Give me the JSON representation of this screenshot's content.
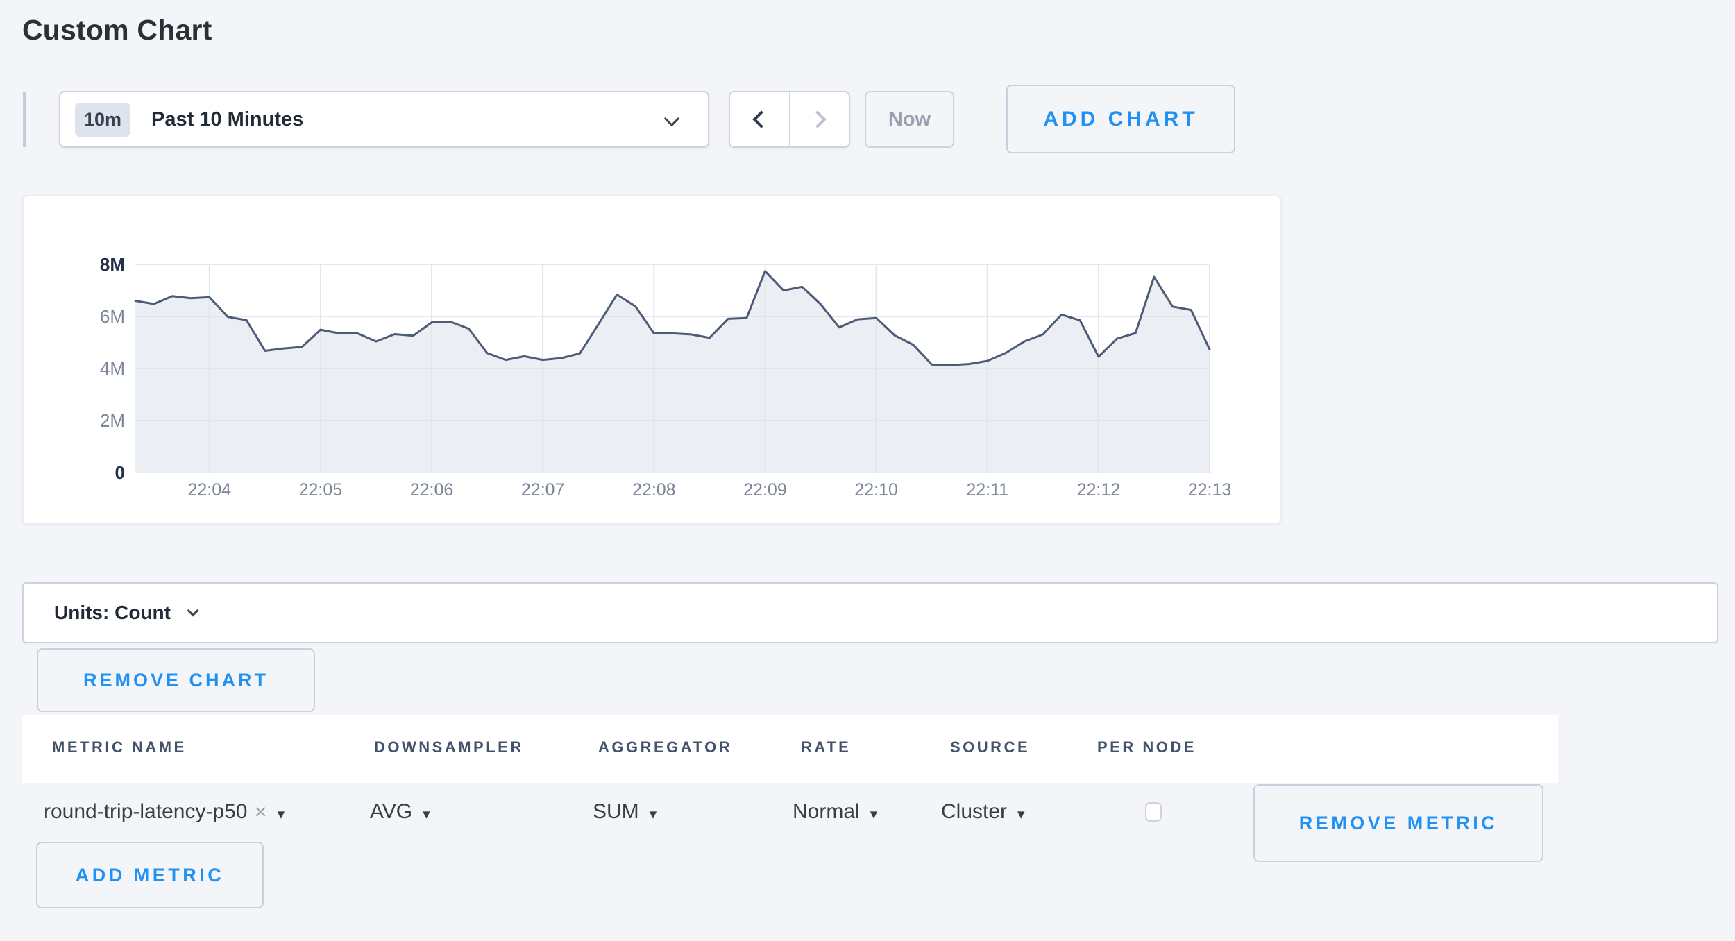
{
  "page": {
    "title": "Custom Chart"
  },
  "toolbar": {
    "time_badge": "10m",
    "time_label": "Past 10 Minutes",
    "now_label": "Now",
    "add_chart_label": "ADD CHART"
  },
  "units_bar": {
    "label": "Units: Count"
  },
  "chart_controls": {
    "remove_chart_label": "REMOVE CHART"
  },
  "metrics_table": {
    "columns": [
      "METRIC NAME",
      "DOWNSAMPLER",
      "AGGREGATOR",
      "RATE",
      "SOURCE",
      "PER NODE"
    ],
    "row": {
      "metric_name": "round-trip-latency-p50",
      "downsampler": "AVG",
      "aggregator": "SUM",
      "rate": "Normal",
      "source": "Cluster",
      "per_node_checked": false,
      "remove_metric_label": "REMOVE METRIC"
    },
    "add_metric_label": "ADD METRIC"
  },
  "icons": {
    "dropdown_caret": "▾",
    "clear_x": "×"
  },
  "colors": {
    "accent_blue": "#2191f3",
    "page_bg": "#f4f5f9",
    "line": "#4d5b76",
    "fill": "rgba(223,227,236,0.62)",
    "grid": "#e2e6ef",
    "axis_strong": "#243047",
    "axis_muted": "#7b8699"
  },
  "chart_data": {
    "type": "area",
    "title": "",
    "xlabel": "",
    "ylabel": "",
    "legend": "none",
    "grid": true,
    "ylim_millions": [
      0,
      8
    ],
    "x_total_seconds": 580,
    "y_ticks": [
      {
        "label": "0",
        "value_millions": 0
      },
      {
        "label": "2M",
        "value_millions": 2
      },
      {
        "label": "4M",
        "value_millions": 4
      },
      {
        "label": "6M",
        "value_millions": 6
      },
      {
        "label": "8M",
        "value_millions": 8
      }
    ],
    "x_ticks": [
      {
        "label": "22:04",
        "offset_seconds": 40
      },
      {
        "label": "22:05",
        "offset_seconds": 100
      },
      {
        "label": "22:06",
        "offset_seconds": 160
      },
      {
        "label": "22:07",
        "offset_seconds": 220
      },
      {
        "label": "22:08",
        "offset_seconds": 280
      },
      {
        "label": "22:09",
        "offset_seconds": 340
      },
      {
        "label": "22:10",
        "offset_seconds": 400
      },
      {
        "label": "22:11",
        "offset_seconds": 460
      },
      {
        "label": "22:12",
        "offset_seconds": 520
      },
      {
        "label": "22:13",
        "offset_seconds": 580
      }
    ],
    "series": [
      {
        "name": "round-trip-latency-p50",
        "start_time": "22:03:20",
        "end_time": "22:13:00",
        "interval_seconds": 10,
        "values_millions": [
          6.6,
          6.48,
          6.78,
          6.7,
          6.74,
          5.98,
          5.86,
          4.68,
          4.77,
          4.83,
          5.49,
          5.35,
          5.35,
          5.04,
          5.32,
          5.26,
          5.77,
          5.8,
          5.53,
          4.59,
          4.33,
          4.47,
          4.33,
          4.4,
          4.58,
          5.7,
          6.84,
          6.39,
          5.35,
          5.35,
          5.31,
          5.18,
          5.91,
          5.94,
          7.74,
          7.0,
          7.14,
          6.47,
          5.58,
          5.89,
          5.94,
          5.27,
          4.91,
          4.15,
          4.13,
          4.17,
          4.29,
          4.6,
          5.04,
          5.31,
          6.07,
          5.85,
          4.45,
          5.15,
          5.36,
          7.52,
          6.38,
          6.25,
          4.73
        ]
      }
    ]
  }
}
